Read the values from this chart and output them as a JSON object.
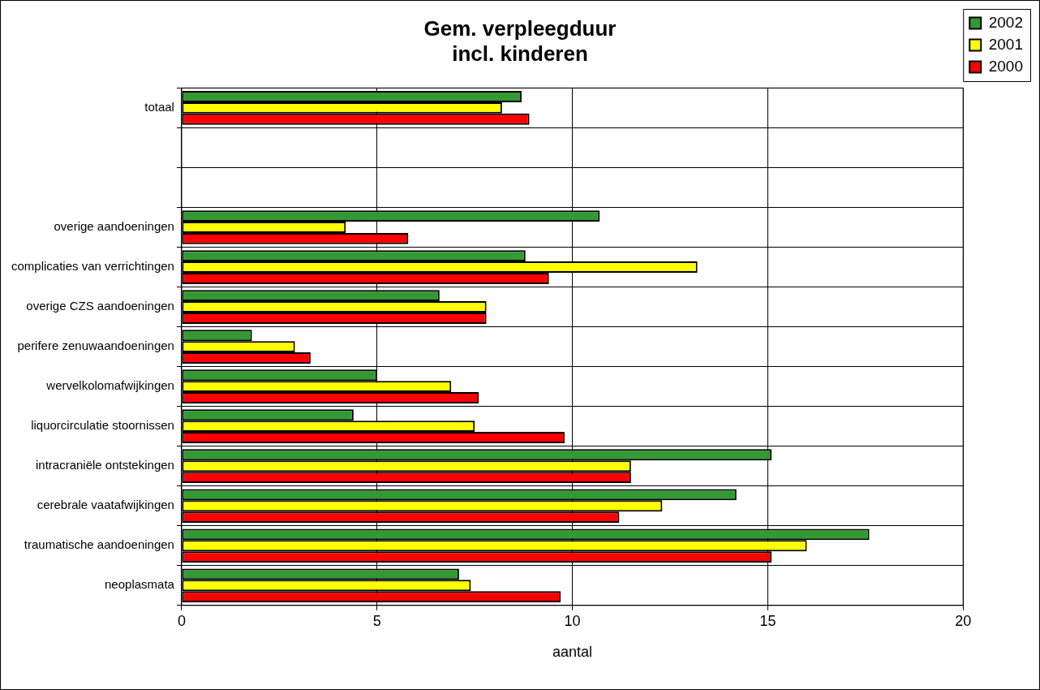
{
  "chart_data": {
    "type": "bar",
    "orientation": "horizontal",
    "title": "Gem. verpleegduur\nincl. kinderen",
    "xlabel": "aantal",
    "categories": [
      "totaal",
      null,
      null,
      "overige aandoeningen",
      "complicaties van verrichtingen",
      "overige CZS aandoeningen",
      "perifere zenuwaandoeningen",
      "wervelkolomafwijkingen",
      "liquorcirculatie stoornissen",
      "intracraniële ontstekingen",
      "cerebrale vaatafwijkingen",
      "traumatische aandoeningen",
      "neoplasmata"
    ],
    "series": [
      {
        "name": "2002",
        "color": "#339933",
        "values": [
          8.7,
          null,
          null,
          10.7,
          8.8,
          6.6,
          1.8,
          5.0,
          4.4,
          15.1,
          14.2,
          17.6,
          7.1
        ]
      },
      {
        "name": "2001",
        "color": "#ffff00",
        "values": [
          8.2,
          null,
          null,
          4.2,
          13.2,
          7.8,
          2.9,
          6.9,
          7.5,
          11.5,
          12.3,
          16.0,
          7.4
        ]
      },
      {
        "name": "2000",
        "color": "#ff0000",
        "values": [
          8.9,
          null,
          null,
          5.8,
          9.4,
          7.8,
          3.3,
          7.6,
          9.8,
          11.5,
          11.2,
          15.1,
          9.7
        ]
      }
    ],
    "xlim": [
      0,
      20
    ],
    "xticks": [
      0,
      5,
      10,
      15,
      20
    ],
    "grid": true,
    "legend": "top right"
  }
}
